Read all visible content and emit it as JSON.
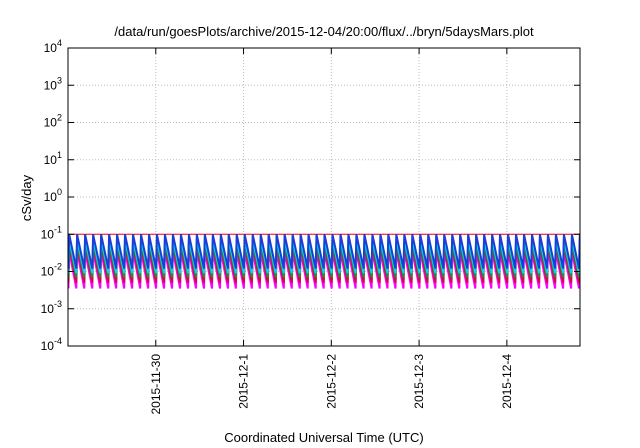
{
  "chart_data": {
    "type": "line",
    "title": "/data/run/goesPlots/archive/2015-12-04/20:00/flux/../bryn/5daysMars.plot",
    "xlabel": "Coordinated Universal Time (UTC)",
    "ylabel": "cSv/day",
    "y_scale": "log",
    "ylim": [
      0.0001,
      10000
    ],
    "y_ticks": [
      {
        "value": 0.0001,
        "base": "10",
        "exp": "-4"
      },
      {
        "value": 0.001,
        "base": "10",
        "exp": "-3"
      },
      {
        "value": 0.01,
        "base": "10",
        "exp": "-2"
      },
      {
        "value": 0.1,
        "base": "10",
        "exp": "-1"
      },
      {
        "value": 1,
        "base": "10",
        "exp": "0"
      },
      {
        "value": 10,
        "base": "10",
        "exp": "1"
      },
      {
        "value": 100,
        "base": "10",
        "exp": "2"
      },
      {
        "value": 1000,
        "base": "10",
        "exp": "3"
      },
      {
        "value": 10000,
        "base": "10",
        "exp": "4"
      }
    ],
    "xlim": [
      "2015-11-29 00:00",
      "2015-12-04 20:00"
    ],
    "x_ticks": [
      "2015-11-30",
      "2015-12-1",
      "2015-12-2",
      "2015-12-3",
      "2015-12-4"
    ],
    "grid": true,
    "reference_level": 0.1,
    "pattern": {
      "description": "sawtooth oscillation, roughly 11 cycles per day; each cycle rises sharply to a peak then decays",
      "cycles_per_day": 11,
      "first_peak": "2015-11-29 02:30"
    },
    "series": [
      {
        "color": "#ff00ff",
        "peak": 0.035,
        "trough": 0.0035
      },
      {
        "color": "#c8103c",
        "peak": 0.05,
        "trough": 0.005
      },
      {
        "color": "#2a8a3a",
        "peak": 0.06,
        "trough": 0.007
      },
      {
        "color": "#00d8e8",
        "peak": 0.075,
        "trough": 0.009
      },
      {
        "color": "#1a3fd6",
        "peak": 0.1,
        "trough": 0.012
      }
    ],
    "colors": {
      "reference_line": "#ff0000",
      "grid": "#bdbdbd",
      "axes": "#000000"
    }
  }
}
